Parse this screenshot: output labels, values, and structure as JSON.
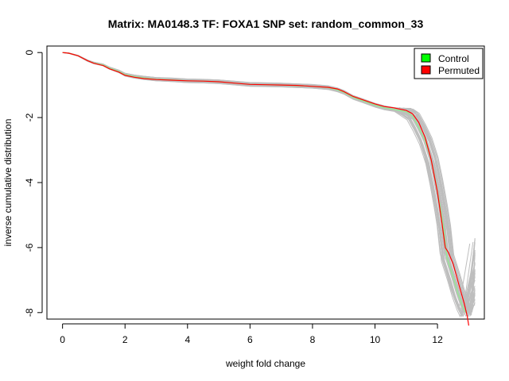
{
  "chart_data": {
    "type": "line",
    "title": "Matrix: MA0148.3 TF: FOXA1 SNP set: random_common_33",
    "xlabel": "weight fold change",
    "ylabel": "inverse cumulative distribution",
    "xlim": [
      -0.5,
      13.5
    ],
    "ylim": [
      -8.2,
      0.2
    ],
    "x_ticks": [
      0,
      2,
      4,
      6,
      8,
      10,
      12
    ],
    "y_ticks": [
      0,
      -2,
      -4,
      -6,
      -8
    ],
    "grid": false,
    "legend": {
      "placement": "top-right",
      "entries": [
        {
          "label": "Control",
          "color": "#00ff00"
        },
        {
          "label": "Permuted",
          "color": "#ff0000"
        }
      ]
    },
    "colors": {
      "control_line": "#90ee90",
      "permuted_line": "#ff0000",
      "background_lines": "#bebebe"
    },
    "series": [
      {
        "name": "Control",
        "color": "#90ee90",
        "x": [
          0,
          0.2,
          0.5,
          0.8,
          1.0,
          1.3,
          1.5,
          1.8,
          2.0,
          2.3,
          2.6,
          3.0,
          3.5,
          4.0,
          4.5,
          5.0,
          5.5,
          6.0,
          6.5,
          7.0,
          7.5,
          8.0,
          8.5,
          8.8,
          9.0,
          9.3,
          9.6,
          10.0,
          10.3,
          10.6,
          11.0,
          11.2,
          11.4,
          11.6,
          11.8,
          11.95,
          12.1,
          12.2,
          12.3,
          12.5,
          12.65,
          12.8,
          12.9
        ],
        "values": [
          0,
          -0.02,
          -0.1,
          -0.25,
          -0.32,
          -0.38,
          -0.48,
          -0.58,
          -0.68,
          -0.74,
          -0.78,
          -0.82,
          -0.84,
          -0.87,
          -0.88,
          -0.9,
          -0.94,
          -0.98,
          -0.99,
          -1.0,
          -1.02,
          -1.04,
          -1.08,
          -1.15,
          -1.22,
          -1.38,
          -1.48,
          -1.62,
          -1.7,
          -1.75,
          -1.82,
          -1.95,
          -2.3,
          -2.7,
          -3.3,
          -4.0,
          -4.8,
          -5.4,
          -6.3,
          -6.9,
          -7.4,
          -7.8,
          -8.0
        ]
      },
      {
        "name": "Permuted",
        "color": "#ff0000",
        "x": [
          0,
          0.2,
          0.5,
          0.8,
          1.0,
          1.3,
          1.5,
          1.8,
          2.0,
          2.3,
          2.6,
          3.0,
          3.5,
          4.0,
          4.5,
          5.0,
          5.5,
          6.0,
          6.5,
          7.0,
          7.5,
          8.0,
          8.5,
          8.8,
          9.0,
          9.3,
          9.6,
          10.0,
          10.3,
          10.6,
          11.0,
          11.2,
          11.4,
          11.6,
          11.8,
          12.0,
          12.15,
          12.25,
          12.35,
          12.5,
          12.7,
          12.85,
          12.95,
          13.0
        ],
        "values": [
          0,
          -0.02,
          -0.1,
          -0.25,
          -0.33,
          -0.4,
          -0.5,
          -0.6,
          -0.7,
          -0.76,
          -0.8,
          -0.83,
          -0.85,
          -0.87,
          -0.88,
          -0.9,
          -0.94,
          -0.98,
          -0.99,
          -1.0,
          -1.01,
          -1.04,
          -1.07,
          -1.12,
          -1.2,
          -1.35,
          -1.45,
          -1.58,
          -1.66,
          -1.7,
          -1.78,
          -1.88,
          -2.15,
          -2.6,
          -3.3,
          -4.3,
          -5.3,
          -6.0,
          -6.15,
          -6.5,
          -7.2,
          -7.7,
          -8.1,
          -8.4
        ]
      }
    ]
  }
}
